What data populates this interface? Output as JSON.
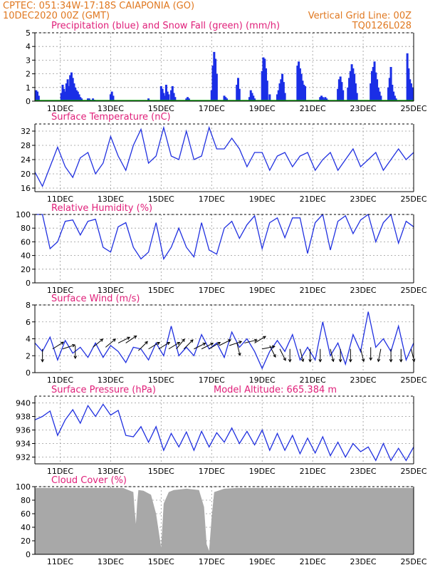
{
  "header": {
    "line1": "CPTEC:   051:34W-17:18S   CAIAPONIA (GO)",
    "line2_left": "10DEC2020 00Z (GMT)",
    "line2_right": "Vertical Grid Line: 00Z",
    "line3_right": "TQ0126L028"
  },
  "colors": {
    "header": "#e07820",
    "title": "#e0207a",
    "precip": "#1a2ee6",
    "snow": "#10a010",
    "line": "#2030e0",
    "cloud": "#a8a8a8",
    "arrow": "#000000"
  },
  "chart_data": [
    {
      "type": "bar",
      "id": "precip",
      "title": "Precipitation (blue) and Snow Fall (green) (mm/h)",
      "ylim": [
        0,
        5
      ],
      "yticks": [
        0,
        1,
        2,
        3,
        4,
        5
      ],
      "x_date_ticks": [
        "11DEC",
        "13DEC",
        "15DEC",
        "17DEC",
        "19DEC",
        "21DEC",
        "23DEC",
        "25DEC"
      ],
      "x_range_days": [
        0,
        15
      ],
      "series": [
        {
          "name": "Precipitation",
          "x": [
            0.05,
            0.1,
            0.15,
            1.05,
            1.1,
            1.15,
            1.2,
            1.25,
            1.3,
            1.35,
            1.4,
            1.45,
            1.5,
            1.55,
            1.6,
            1.65,
            1.7,
            1.75,
            1.8,
            1.85,
            2.1,
            2.15,
            2.2,
            2.3,
            2.35,
            3.0,
            3.05,
            3.1,
            4.5,
            5.0,
            5.05,
            5.1,
            5.15,
            5.2,
            5.25,
            5.3,
            5.4,
            5.45,
            5.5,
            5.55,
            6.0,
            6.05,
            6.1,
            7.0,
            7.05,
            7.1,
            7.15,
            7.2,
            7.5,
            7.55,
            7.6,
            8.0,
            8.05,
            8.1,
            8.5,
            8.55,
            8.6,
            8.65,
            8.7,
            9.0,
            9.05,
            9.1,
            9.15,
            9.2,
            9.3,
            9.6,
            9.65,
            9.7,
            9.75,
            9.8,
            9.85,
            9.9,
            10.4,
            10.45,
            10.5,
            10.55,
            10.6,
            10.65,
            10.7,
            11.3,
            11.35,
            11.4,
            11.45,
            11.5,
            11.55,
            11.6,
            12.0,
            12.05,
            12.1,
            12.15,
            12.2,
            12.4,
            12.45,
            12.5,
            12.55,
            12.6,
            12.65,
            12.7,
            12.75,
            13.3,
            13.35,
            13.4,
            13.45,
            13.5,
            13.55,
            13.6,
            13.65,
            13.7,
            14.0,
            14.05,
            14.1,
            14.15,
            14.2,
            14.25,
            14.3,
            14.75,
            14.8,
            14.85,
            14.9,
            14.95
          ],
          "values": [
            0.8,
            0.7,
            0.4,
            0.6,
            1.2,
            0.9,
            0.7,
            1.3,
            1.6,
            1.1,
            1.9,
            2.1,
            1.7,
            1.3,
            1.0,
            0.8,
            0.7,
            0.5,
            0.3,
            0.2,
            0.2,
            0.2,
            0.1,
            0.2,
            0.1,
            0.5,
            0.7,
            0.4,
            0.2,
            1.1,
            0.9,
            0.6,
            0.4,
            1.2,
            0.7,
            0.5,
            0.8,
            1.1,
            0.6,
            0.3,
            0.2,
            0.3,
            0.2,
            0.8,
            2.6,
            3.6,
            3.1,
            2.0,
            0.4,
            0.3,
            0.2,
            1.2,
            1.7,
            0.9,
            0.3,
            0.8,
            0.6,
            0.4,
            0.2,
            2.2,
            3.2,
            3.1,
            2.4,
            1.5,
            0.5,
            0.5,
            0.8,
            1.3,
            1.6,
            2.0,
            1.4,
            0.6,
            2.6,
            2.9,
            2.4,
            2.0,
            1.5,
            1.2,
            1.1,
            0.3,
            0.4,
            0.3,
            0.2,
            0.3,
            0.2,
            0.1,
            0.9,
            1.6,
            1.8,
            1.4,
            0.8,
            1.0,
            1.7,
            2.2,
            2.7,
            2.4,
            2.0,
            1.3,
            0.6,
            1.3,
            2.2,
            2.5,
            2.9,
            2.1,
            1.6,
            1.0,
            0.7,
            0.4,
            1.0,
            1.7,
            2.5,
            1.2,
            0.7,
            0.4,
            0.2,
            3.5,
            2.4,
            1.6,
            1.3,
            1.0
          ]
        },
        {
          "name": "Snow Fall",
          "x": [
            0,
            15
          ],
          "values": [
            0,
            0
          ]
        }
      ]
    },
    {
      "type": "line",
      "id": "temp",
      "title": "Surface Temperature (nC)",
      "ylim": [
        15,
        34
      ],
      "yticks": [
        16,
        20,
        24,
        28,
        32
      ],
      "x_range_days": [
        0,
        15
      ],
      "series": [
        {
          "name": "Temperature",
          "x": [
            0,
            0.3,
            0.6,
            0.9,
            1.2,
            1.5,
            1.8,
            2.1,
            2.4,
            2.7,
            3.0,
            3.3,
            3.6,
            3.9,
            4.2,
            4.5,
            4.8,
            5.1,
            5.4,
            5.7,
            6.0,
            6.3,
            6.6,
            6.9,
            7.2,
            7.5,
            7.8,
            8.1,
            8.4,
            8.7,
            9.0,
            9.3,
            9.6,
            9.9,
            10.2,
            10.5,
            10.8,
            11.1,
            11.4,
            11.7,
            12.0,
            12.3,
            12.6,
            12.9,
            13.2,
            13.5,
            13.8,
            14.1,
            14.4,
            14.7,
            15.0
          ],
          "values": [
            20.5,
            16.5,
            22,
            27.5,
            22,
            19,
            24.5,
            26,
            20,
            23,
            30.5,
            25,
            21,
            28,
            32.5,
            23,
            25,
            33,
            25,
            24,
            32,
            24,
            25,
            33,
            27,
            27,
            30,
            27,
            22,
            26,
            26,
            21,
            25,
            26,
            22,
            25,
            26,
            21,
            24,
            26,
            21,
            24,
            27,
            22,
            24,
            26,
            21,
            24,
            27,
            24,
            26
          ]
        }
      ]
    },
    {
      "type": "line",
      "id": "rh",
      "title": "Relative Humidity (%)",
      "ylim": [
        0,
        100
      ],
      "yticks": [
        0,
        20,
        40,
        60,
        80,
        100
      ],
      "x_range_days": [
        0,
        15
      ],
      "series": [
        {
          "name": "Relative Humidity",
          "x": [
            0,
            0.3,
            0.6,
            0.9,
            1.2,
            1.5,
            1.8,
            2.1,
            2.4,
            2.7,
            3.0,
            3.3,
            3.6,
            3.9,
            4.2,
            4.5,
            4.8,
            5.1,
            5.4,
            5.7,
            6.0,
            6.3,
            6.6,
            6.9,
            7.2,
            7.5,
            7.8,
            8.1,
            8.4,
            8.7,
            9.0,
            9.3,
            9.6,
            9.9,
            10.2,
            10.5,
            10.8,
            11.1,
            11.4,
            11.7,
            12.0,
            12.3,
            12.6,
            12.9,
            13.2,
            13.5,
            13.8,
            14.1,
            14.4,
            14.7,
            15.0
          ],
          "values": [
            100,
            100,
            50,
            60,
            90,
            92,
            70,
            90,
            93,
            52,
            45,
            82,
            88,
            52,
            35,
            45,
            88,
            35,
            52,
            80,
            52,
            38,
            88,
            48,
            42,
            80,
            90,
            65,
            85,
            98,
            50,
            88,
            95,
            66,
            95,
            95,
            43,
            88,
            100,
            48,
            90,
            98,
            72,
            92,
            100,
            60,
            88,
            100,
            58,
            90,
            82
          ]
        }
      ]
    },
    {
      "type": "line",
      "id": "wind",
      "title": "Surface Wind (m/s)",
      "ylim": [
        0,
        8
      ],
      "yticks": [
        0,
        2,
        4,
        6,
        8
      ],
      "x_range_days": [
        0,
        15
      ],
      "series": [
        {
          "name": "Wind speed",
          "x": [
            0,
            0.3,
            0.6,
            0.9,
            1.2,
            1.5,
            1.8,
            2.1,
            2.4,
            2.7,
            3.0,
            3.3,
            3.6,
            3.9,
            4.2,
            4.5,
            4.8,
            5.1,
            5.4,
            5.7,
            6.0,
            6.3,
            6.6,
            6.9,
            7.2,
            7.5,
            7.8,
            8.1,
            8.4,
            8.7,
            9.0,
            9.3,
            9.6,
            9.9,
            10.2,
            10.5,
            10.8,
            11.1,
            11.4,
            11.7,
            12.0,
            12.3,
            12.6,
            12.9,
            13.2,
            13.5,
            13.8,
            14.1,
            14.4,
            14.7,
            15.0
          ],
          "values": [
            3.5,
            2.5,
            4.2,
            1.5,
            3.8,
            2.3,
            3.0,
            1.8,
            3.5,
            1.8,
            3.2,
            2.5,
            1.2,
            3.0,
            2.8,
            1.5,
            3.5,
            2.0,
            5.5,
            2.0,
            3.0,
            2.0,
            4.5,
            2.8,
            3.5,
            1.8,
            4.8,
            3.0,
            4.0,
            2.5,
            0.5,
            2.5,
            3.8,
            2.5,
            4.5,
            1.5,
            3.0,
            1.5,
            6.0,
            2.0,
            3.5,
            1.0,
            4.5,
            2.5,
            7.2,
            3.0,
            4.0,
            2.5,
            5.5,
            1.5,
            3.5
          ]
        }
      ],
      "arrows": {
        "x": [
          0.3,
          0.7,
          1.1,
          1.6,
          2.3,
          2.8,
          3.3,
          3.6,
          4.1,
          4.5,
          4.9,
          5.3,
          5.6,
          5.9,
          6.3,
          6.6,
          6.9,
          7.3,
          7.7,
          8.0,
          8.3,
          8.7,
          9.0,
          9.3,
          9.7,
          10.1,
          10.5,
          10.9,
          11.3,
          11.7,
          12.1,
          12.5,
          12.9,
          13.3,
          13.7,
          14.1,
          14.5,
          14.9
        ],
        "y": [
          2.8,
          2.8,
          2.8,
          3.2,
          3.0,
          3.0,
          3.5,
          3.5,
          2.6,
          2.8,
          2.8,
          2.8,
          2.8,
          2.8,
          2.8,
          2.8,
          2.8,
          3.2,
          3.2,
          3.5,
          3.5,
          3.5,
          2.8,
          3.2,
          2.8,
          2.8,
          2.8,
          2.8,
          2.8,
          2.8,
          2.8,
          2.8,
          2.8,
          3.0,
          2.8,
          2.8,
          2.8,
          2.8
        ],
        "u": [
          0,
          0.8,
          0.9,
          0,
          0.6,
          0.6,
          0.6,
          0.3,
          0.5,
          0.5,
          0.5,
          0.5,
          0.5,
          0.5,
          0.4,
          0.4,
          0.5,
          0.6,
          0.6,
          0.2,
          0.4,
          0.5,
          0.5,
          0.3,
          0.3,
          0,
          0.2,
          0,
          0,
          0.2,
          0,
          0,
          0.2,
          0,
          -0.2,
          0,
          0,
          0.2
        ],
        "v": [
          -0.9,
          0.5,
          0.3,
          -0.8,
          0.5,
          0.5,
          0.3,
          0.2,
          0.5,
          0.3,
          0.3,
          0.3,
          0.6,
          0.5,
          0.2,
          0.2,
          0.3,
          0.3,
          0.2,
          -0.8,
          0.1,
          0.3,
          0.1,
          -0.6,
          -0.6,
          -0.8,
          -0.8,
          -0.8,
          -0.8,
          -0.8,
          -1.0,
          -1.0,
          -0.8,
          -0.9,
          -1.0,
          -1.0,
          -1.0,
          -0.8
        ]
      }
    },
    {
      "type": "line",
      "id": "pres",
      "title": "Surface Pressure (hPa)",
      "annotation": "Model Altitude: 665.384 m",
      "ylim": [
        931,
        941
      ],
      "yticks": [
        932,
        934,
        936,
        938,
        940
      ],
      "x_range_days": [
        0,
        15
      ],
      "series": [
        {
          "name": "Pressure",
          "x": [
            0,
            0.3,
            0.6,
            0.9,
            1.2,
            1.5,
            1.8,
            2.1,
            2.4,
            2.7,
            3.0,
            3.3,
            3.6,
            3.9,
            4.2,
            4.5,
            4.8,
            5.1,
            5.4,
            5.7,
            6.0,
            6.3,
            6.6,
            6.9,
            7.2,
            7.5,
            7.8,
            8.1,
            8.4,
            8.7,
            9.0,
            9.3,
            9.6,
            9.9,
            10.2,
            10.5,
            10.8,
            11.1,
            11.4,
            11.7,
            12.0,
            12.3,
            12.6,
            12.9,
            13.2,
            13.5,
            13.8,
            14.1,
            14.4,
            14.7,
            15.0
          ],
          "values": [
            937.5,
            938,
            938.8,
            935.2,
            937.5,
            939,
            937,
            939.6,
            938,
            939.8,
            938.2,
            938.9,
            935.2,
            935,
            936.5,
            934.2,
            936.5,
            933,
            935.5,
            933.5,
            935.7,
            933,
            935.8,
            933.5,
            935.6,
            934.2,
            936.3,
            934,
            935.8,
            933.8,
            936.0,
            933,
            935.5,
            933,
            935.2,
            932.5,
            934.8,
            932.6,
            935.0,
            932.2,
            934.2,
            932.0,
            934.0,
            932.8,
            933.5,
            931.5,
            934.0,
            931.5,
            933.3,
            931.5,
            933.5
          ]
        }
      ]
    },
    {
      "type": "area",
      "id": "cloud",
      "title": "Cloud Cover (%)",
      "ylim": [
        0,
        100
      ],
      "yticks": [
        0,
        20,
        40,
        60,
        80,
        100
      ],
      "x_range_days": [
        0,
        15
      ],
      "series": [
        {
          "name": "Cloud Cover",
          "x": [
            0,
            0.5,
            1,
            1.5,
            2,
            2.5,
            3,
            3.5,
            3.9,
            3.95,
            4.0,
            4.05,
            4.1,
            4.3,
            4.6,
            4.8,
            4.9,
            5.0,
            5.1,
            5.3,
            5.5,
            6.0,
            6.5,
            6.7,
            6.8,
            6.9,
            7.0,
            7.1,
            7.5,
            8,
            8.5,
            9,
            9.5,
            10,
            10.5,
            11,
            11.5,
            12,
            12.5,
            13,
            13.5,
            14,
            14.5,
            15
          ],
          "values": [
            98,
            98,
            98,
            98,
            98,
            98,
            98,
            98,
            92,
            65,
            45,
            75,
            95,
            94,
            88,
            60,
            35,
            10,
            75,
            92,
            95,
            97,
            95,
            70,
            15,
            5,
            55,
            92,
            97,
            98,
            98,
            98,
            98,
            98,
            98,
            98,
            98,
            98,
            98,
            98,
            98,
            98,
            98,
            98
          ]
        }
      ]
    }
  ]
}
